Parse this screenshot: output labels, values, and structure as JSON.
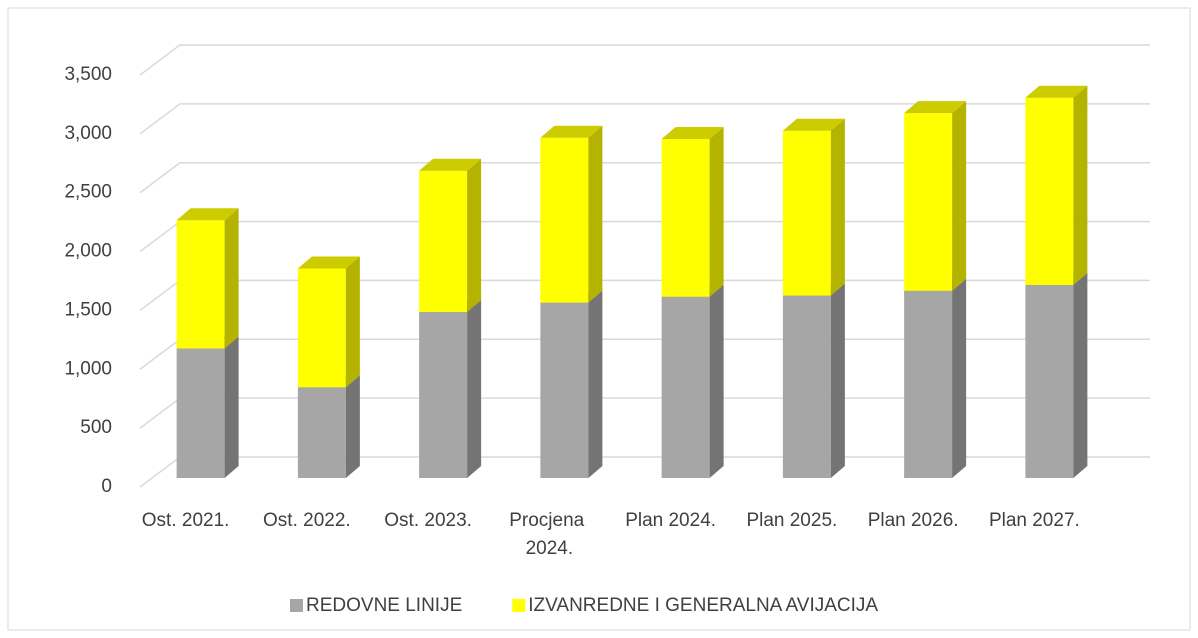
{
  "chart_data": {
    "type": "bar3d_stacked",
    "categories": [
      "Ost. 2021.",
      "Ost. 2022.",
      "Ost. 2023.",
      "Procjena 2024.",
      "Plan 2024.",
      "Plan 2025.",
      "Plan 2026.",
      "Plan 2027."
    ],
    "series": [
      {
        "name": "REDOVNE LINIJE",
        "color": "#a6a6a6",
        "values": [
          1100,
          770,
          1410,
          1490,
          1540,
          1550,
          1590,
          1640
        ]
      },
      {
        "name": "IZVANREDNE I GENERALNA AVIJACIJA",
        "color": "#ffff00",
        "values": [
          1090,
          1010,
          1200,
          1400,
          1340,
          1400,
          1510,
          1590
        ]
      }
    ],
    "ylim": [
      0,
      3500
    ],
    "yticks": [
      0,
      500,
      {
        "value": 1000,
        "label": "1,000"
      },
      {
        "value": 1500,
        "label": "1,500"
      },
      {
        "value": 2000,
        "label": "2,000"
      },
      {
        "value": 2500,
        "label": "2,500"
      },
      {
        "value": 3000,
        "label": "3,000"
      },
      {
        "value": 3500,
        "label": "3,500"
      }
    ],
    "grid": true,
    "legend": "bottom"
  }
}
